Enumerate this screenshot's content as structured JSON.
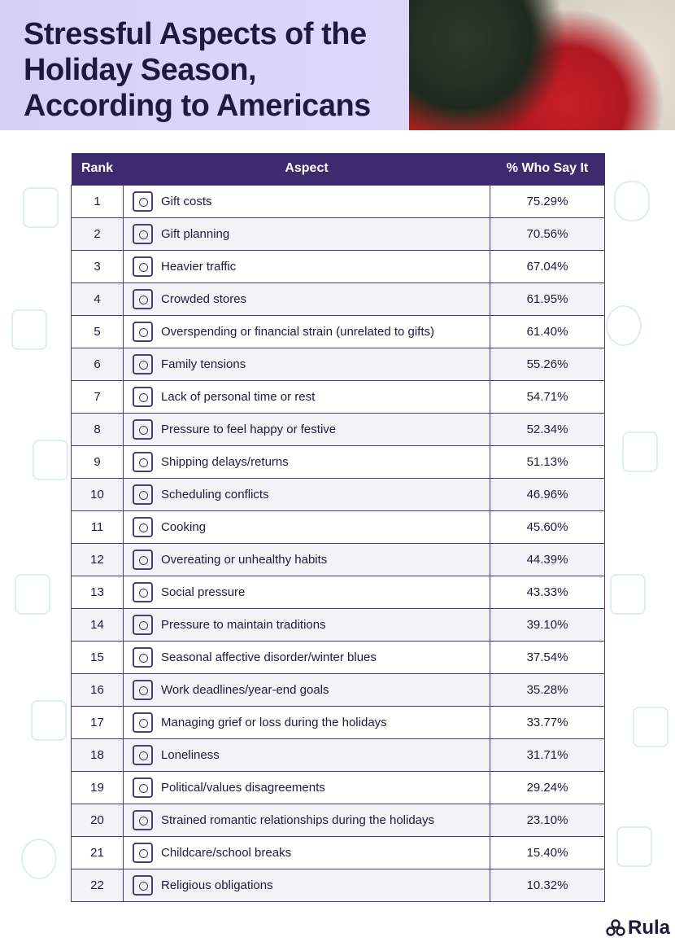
{
  "title": "Stressful Aspects of the Holiday Season, According to Americans",
  "logo": "Rula",
  "colors": {
    "header": "#3d2b70",
    "banner": "#d6d0f8",
    "text": "#1f1a3d"
  },
  "chart_data": {
    "type": "table",
    "columns": [
      "Rank",
      "Aspect",
      "% Who Say It"
    ],
    "rows": [
      {
        "rank": "1",
        "aspect": "Gift costs",
        "pct": "75.29%",
        "icon": "gift-dollar-icon"
      },
      {
        "rank": "2",
        "aspect": "Gift planning",
        "pct": "70.56%",
        "icon": "clipboard-gift-icon"
      },
      {
        "rank": "3",
        "aspect": "Heavier traffic",
        "pct": "67.04%",
        "icon": "cars-icon"
      },
      {
        "rank": "4",
        "aspect": "Crowded stores",
        "pct": "61.95%",
        "icon": "store-icon"
      },
      {
        "rank": "5",
        "aspect": "Overspending or financial strain (unrelated to gifts)",
        "pct": "61.40%",
        "icon": "hands-dollar-icon"
      },
      {
        "rank": "6",
        "aspect": "Family tensions",
        "pct": "55.26%",
        "icon": "family-icon"
      },
      {
        "rank": "7",
        "aspect": "Lack of personal time or rest",
        "pct": "54.71%",
        "icon": "hourglass-icon"
      },
      {
        "rank": "8",
        "aspect": "Pressure to feel happy or festive",
        "pct": "52.34%",
        "icon": "hand-smile-icon"
      },
      {
        "rank": "9",
        "aspect": "Shipping delays/returns",
        "pct": "51.13%",
        "icon": "package-clock-icon"
      },
      {
        "rank": "10",
        "aspect": "Scheduling conflicts",
        "pct": "46.96%",
        "icon": "calendar-alert-icon"
      },
      {
        "rank": "11",
        "aspect": "Cooking",
        "pct": "45.60%",
        "icon": "pot-icon"
      },
      {
        "rank": "12",
        "aspect": "Overeating or unhealthy habits",
        "pct": "44.39%",
        "icon": "face-icon"
      },
      {
        "rank": "13",
        "aspect": "Social pressure",
        "pct": "43.33%",
        "icon": "people-network-icon"
      },
      {
        "rank": "14",
        "aspect": "Pressure to maintain traditions",
        "pct": "39.10%",
        "icon": "person-arrows-icon"
      },
      {
        "rank": "15",
        "aspect": "Seasonal affective disorder/winter blues",
        "pct": "37.54%",
        "icon": "sad-face-icon"
      },
      {
        "rank": "16",
        "aspect": "Work deadlines/year-end goals",
        "pct": "35.28%",
        "icon": "briefcase-clock-icon"
      },
      {
        "rank": "17",
        "aspect": "Managing grief or loss during the holidays",
        "pct": "33.77%",
        "icon": "head-heart-icon"
      },
      {
        "rank": "18",
        "aspect": "Loneliness",
        "pct": "31.71%",
        "icon": "lonely-person-icon"
      },
      {
        "rank": "19",
        "aspect": "Political/values disagreements",
        "pct": "29.24%",
        "icon": "podium-icon"
      },
      {
        "rank": "20",
        "aspect": "Strained romantic relationships during the holidays",
        "pct": "23.10%",
        "icon": "broken-heart-icon"
      },
      {
        "rank": "21",
        "aspect": "Childcare/school breaks",
        "pct": "15.40%",
        "icon": "hand-child-icon"
      },
      {
        "rank": "22",
        "aspect": "Religious obligations",
        "pct": "10.32%",
        "icon": "praying-hands-icon"
      }
    ]
  }
}
